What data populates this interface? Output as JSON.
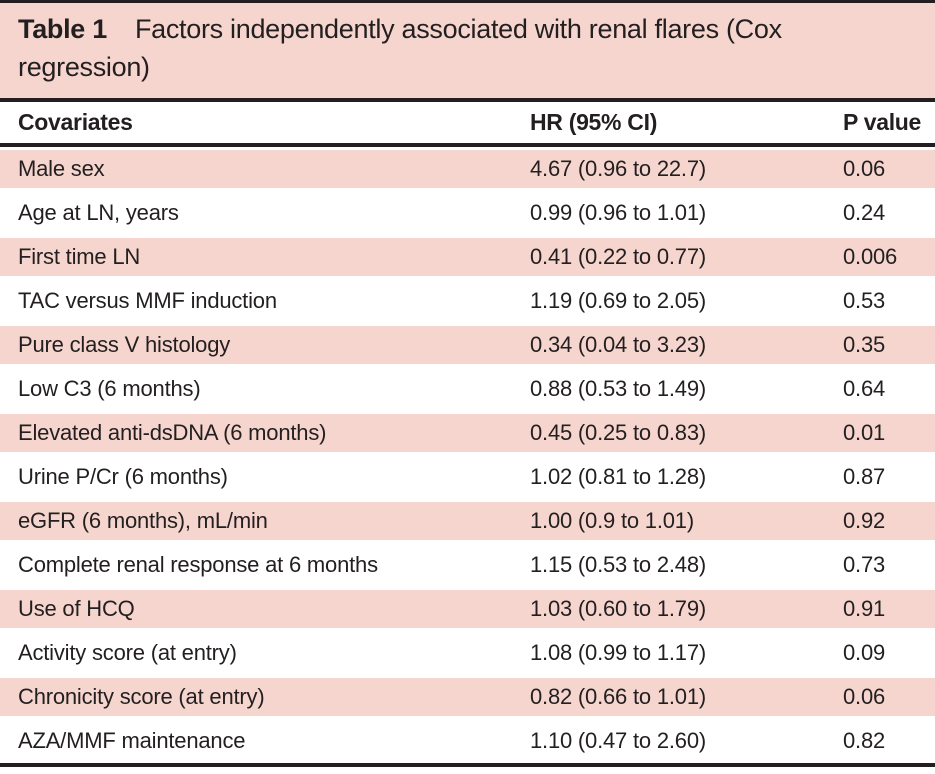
{
  "table": {
    "label": "Table 1",
    "title": "Factors independently associated with renal flares (Cox regression)",
    "columns": [
      "Covariates",
      "HR (95% CI)",
      "P value"
    ],
    "rows": [
      {
        "covariate": "Male sex",
        "hr_ci": "4.67 (0.96 to 22.7)",
        "p_value": "0.06"
      },
      {
        "covariate": "Age at LN, years",
        "hr_ci": "0.99 (0.96 to 1.01)",
        "p_value": "0.24"
      },
      {
        "covariate": "First time LN",
        "hr_ci": "0.41 (0.22 to 0.77)",
        "p_value": "0.006"
      },
      {
        "covariate": "TAC versus MMF induction",
        "hr_ci": "1.19 (0.69 to 2.05)",
        "p_value": "0.53"
      },
      {
        "covariate": "Pure class V histology",
        "hr_ci": "0.34 (0.04 to 3.23)",
        "p_value": "0.35"
      },
      {
        "covariate": "Low C3 (6 months)",
        "hr_ci": "0.88 (0.53 to 1.49)",
        "p_value": "0.64"
      },
      {
        "covariate": "Elevated anti-dsDNA (6 months)",
        "hr_ci": "0.45 (0.25 to 0.83)",
        "p_value": "0.01"
      },
      {
        "covariate": "Urine P/Cr (6 months)",
        "hr_ci": "1.02 (0.81 to 1.28)",
        "p_value": "0.87"
      },
      {
        "covariate": "eGFR (6 months), mL/min",
        "hr_ci": "1.00 (0.9 to 1.01)",
        "p_value": "0.92"
      },
      {
        "covariate": "Complete renal response at 6 months",
        "hr_ci": "1.15 (0.53 to 2.48)",
        "p_value": "0.73"
      },
      {
        "covariate": "Use of HCQ",
        "hr_ci": "1.03 (0.60 to 1.79)",
        "p_value": "0.91"
      },
      {
        "covariate": "Activity score (at entry)",
        "hr_ci": "1.08 (0.99 to 1.17)",
        "p_value": "0.09"
      },
      {
        "covariate": "Chronicity score (at entry)",
        "hr_ci": "0.82 (0.66 to 1.01)",
        "p_value": "0.06"
      },
      {
        "covariate": "AZA/MMF maintenance",
        "hr_ci": "1.10 (0.47 to 2.60)",
        "p_value": "0.82"
      }
    ]
  },
  "colors": {
    "stripe_pink": "#f5d5ce",
    "rule_black": "#231f20",
    "text": "#231f20"
  }
}
